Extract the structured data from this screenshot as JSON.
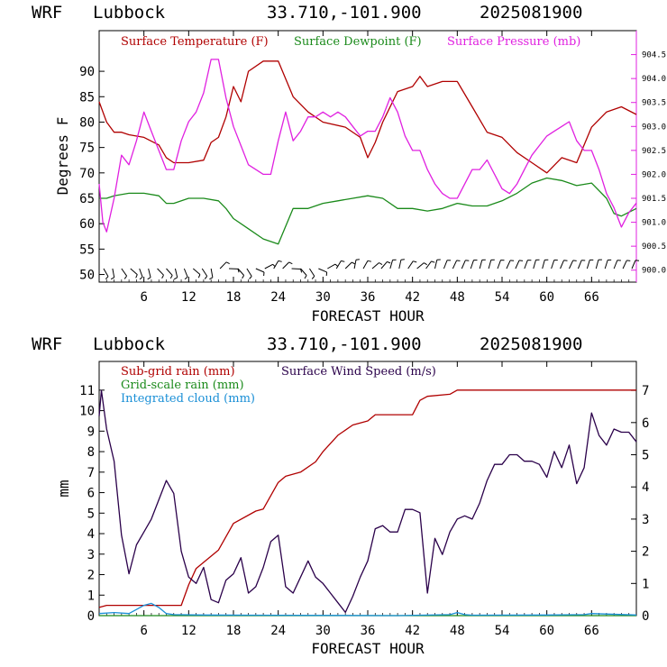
{
  "chart_data": [
    {
      "type": "line",
      "header": {
        "model": "WRF",
        "station": "Lubbock",
        "coords": "33.710,-101.900",
        "date": "2025081900"
      },
      "xlabel": "FORECAST HOUR",
      "ylabel": "Degrees F",
      "xlim": [
        0,
        72
      ],
      "xticks": [
        "6",
        "12",
        "18",
        "24",
        "30",
        "36",
        "42",
        "48",
        "54",
        "60",
        "66"
      ],
      "ylim": [
        48.5,
        98
      ],
      "yticks": [
        "50",
        "55",
        "60",
        "65",
        "70",
        "75",
        "80",
        "85",
        "90"
      ],
      "y2lim": [
        899.75,
        905.0
      ],
      "y2ticks": [
        "900.0",
        "900.5",
        "901.0",
        "901.5",
        "902.0",
        "902.5",
        "903.0",
        "903.5",
        "904.0",
        "904.5"
      ],
      "colors": {
        "temp": "#b00000",
        "dew": "#1a8a1a",
        "pres": "#e020e0"
      },
      "series": [
        {
          "name": "Surface Temperature (F)",
          "axis": "left",
          "x": [
            0,
            1,
            2,
            3,
            4,
            6,
            8,
            9,
            10,
            12,
            14,
            15,
            16,
            17,
            18,
            19,
            20,
            22,
            24,
            26,
            28,
            30,
            33,
            35,
            36,
            37,
            38,
            40,
            42,
            43,
            44,
            46,
            48,
            50,
            52,
            54,
            56,
            58,
            60,
            62,
            64,
            66,
            68,
            70,
            72
          ],
          "y": [
            84,
            80,
            78,
            78,
            77.5,
            77,
            75.5,
            73,
            72,
            72,
            72.5,
            76,
            77,
            81,
            87,
            84,
            90,
            92,
            92,
            85,
            82,
            80,
            79,
            77,
            73,
            76,
            80,
            86,
            87,
            89,
            87,
            88,
            88,
            83,
            78,
            77,
            74,
            72,
            70,
            73,
            72,
            79,
            82,
            83,
            81.5
          ]
        },
        {
          "name": "Surface Dewpoint (F)",
          "axis": "left",
          "x": [
            0,
            1,
            2,
            4,
            6,
            8,
            9,
            10,
            12,
            14,
            16,
            17,
            18,
            20,
            22,
            24,
            26,
            28,
            30,
            32,
            34,
            36,
            38,
            40,
            42,
            44,
            46,
            48,
            50,
            52,
            54,
            56,
            58,
            60,
            62,
            64,
            66,
            68,
            69,
            70,
            72
          ],
          "y": [
            65,
            65,
            65.5,
            66,
            66,
            65.5,
            64,
            64,
            65,
            65,
            64.5,
            63,
            61,
            59,
            57,
            56,
            63,
            63,
            64,
            64.5,
            65,
            65.5,
            65,
            63,
            63,
            62.5,
            63,
            64,
            63.5,
            63.5,
            64.5,
            66,
            68,
            69,
            68.5,
            67.5,
            68,
            65,
            62,
            61.5,
            63
          ]
        },
        {
          "name": "Surface Pressure (mb)",
          "axis": "right",
          "x": [
            0,
            0.5,
            1,
            2,
            3,
            4,
            5,
            6,
            7,
            8,
            9,
            10,
            11,
            12,
            13,
            14,
            15,
            16,
            17,
            18,
            19,
            20,
            21,
            22,
            23,
            24,
            25,
            26,
            27,
            28,
            29,
            30,
            31,
            32,
            33,
            34,
            35,
            36,
            37,
            38,
            39,
            40,
            41,
            42,
            43,
            44,
            45,
            46,
            47,
            48,
            49,
            50,
            51,
            52,
            53,
            54,
            55,
            56,
            57,
            58,
            59,
            60,
            61,
            62,
            63,
            64,
            65,
            66,
            67,
            68,
            69,
            70,
            71,
            72
          ],
          "y": [
            901.8,
            901.0,
            900.8,
            901.5,
            902.4,
            902.2,
            902.7,
            903.3,
            902.9,
            902.5,
            902.1,
            902.1,
            902.7,
            903.1,
            903.3,
            903.7,
            904.4,
            904.4,
            903.6,
            903.0,
            902.6,
            902.2,
            902.1,
            902.0,
            902.0,
            902.7,
            903.3,
            902.7,
            902.9,
            903.2,
            903.2,
            903.3,
            903.2,
            903.3,
            903.2,
            903.0,
            902.8,
            902.9,
            902.9,
            903.2,
            903.6,
            903.3,
            902.8,
            902.5,
            902.5,
            902.1,
            901.8,
            901.6,
            901.5,
            901.5,
            901.8,
            902.1,
            902.1,
            902.3,
            902.0,
            901.7,
            901.6,
            901.8,
            902.1,
            902.4,
            902.6,
            902.8,
            902.9,
            903.0,
            903.1,
            902.7,
            902.5,
            902.5,
            902.1,
            901.6,
            901.3,
            900.9,
            901.2,
            901.4
          ]
        }
      ],
      "wind_barbs": {
        "count": 60
      }
    },
    {
      "type": "line",
      "header": {
        "model": "WRF",
        "station": "Lubbock",
        "coords": "33.710,-101.900",
        "date": "2025081900"
      },
      "xlabel": "FORECAST HOUR",
      "ylabel": "mm",
      "xlim": [
        0,
        72
      ],
      "xticks": [
        "6",
        "12",
        "18",
        "24",
        "30",
        "36",
        "42",
        "48",
        "54",
        "60",
        "66"
      ],
      "ylim": [
        0,
        12.4
      ],
      "yticks": [
        "0",
        "1",
        "2",
        "3",
        "4",
        "5",
        "6",
        "7",
        "8",
        "9",
        "10",
        "11"
      ],
      "y2lim": [
        0,
        7.9
      ],
      "y2ticks": [
        "0",
        "1",
        "2",
        "3",
        "4",
        "5",
        "6",
        "7"
      ],
      "colors": {
        "subgrid": "#b00000",
        "gridscale": "#1a8a1a",
        "cloud": "#1a8fd6",
        "wind": "#2a004a"
      },
      "series": [
        {
          "name": "Sub-grid rain (mm)",
          "axis": "left",
          "x": [
            0,
            1,
            11,
            12,
            13,
            14,
            16,
            18,
            21,
            22,
            24,
            25,
            27,
            29,
            30,
            32,
            34,
            36,
            37,
            42,
            43,
            44,
            47,
            48,
            66,
            72
          ],
          "y": [
            0.4,
            0.5,
            0.5,
            1.5,
            2.3,
            2.6,
            3.2,
            4.5,
            5.1,
            5.2,
            6.5,
            6.8,
            7,
            7.5,
            8,
            8.8,
            9.3,
            9.5,
            9.8,
            9.8,
            10.5,
            10.7,
            10.8,
            11,
            11,
            11
          ]
        },
        {
          "name": "Grid-scale rain (mm)",
          "axis": "left",
          "x": [
            0,
            72
          ],
          "y": [
            0,
            0
          ]
        },
        {
          "name": "Integrated cloud (mm)",
          "axis": "left",
          "x": [
            0,
            2,
            4,
            5,
            6,
            7,
            8,
            9,
            10,
            14,
            20,
            40,
            47,
            48,
            49,
            50,
            60,
            65,
            66,
            72
          ],
          "y": [
            0.1,
            0.15,
            0.1,
            0.3,
            0.5,
            0.6,
            0.4,
            0.1,
            0.05,
            0.03,
            0.02,
            0,
            0.05,
            0.15,
            0.05,
            0.02,
            0.03,
            0.05,
            0.1,
            0.03
          ]
        },
        {
          "name": "Surface Wind Speed (m/s)",
          "axis": "right",
          "x": [
            0,
            0.3,
            1,
            2,
            3,
            4,
            5,
            6,
            7,
            8,
            9,
            10,
            11,
            12,
            13,
            14,
            15,
            16,
            17,
            18,
            19,
            20,
            21,
            22,
            23,
            24,
            25,
            26,
            27,
            28,
            29,
            30,
            31,
            32,
            33,
            34,
            35,
            36,
            37,
            38,
            39,
            40,
            41,
            42,
            43,
            44,
            45,
            46,
            47,
            48,
            49,
            50,
            51,
            52,
            53,
            54,
            55,
            56,
            57,
            58,
            59,
            60,
            61,
            62,
            63,
            64,
            65,
            66,
            67,
            68,
            69,
            70,
            71,
            72
          ],
          "y": [
            6.2,
            7,
            5.8,
            4.8,
            2.5,
            1.3,
            2.2,
            2.6,
            3,
            3.6,
            4.2,
            3.8,
            2.0,
            1.2,
            1.0,
            1.5,
            0.5,
            0.4,
            1.1,
            1.3,
            1.8,
            0.7,
            0.9,
            1.5,
            2.3,
            2.5,
            0.9,
            0.7,
            1.2,
            1.7,
            1.2,
            1.0,
            0.7,
            0.4,
            0.1,
            0.6,
            1.2,
            1.7,
            2.7,
            2.8,
            2.6,
            2.6,
            3.3,
            3.3,
            3.2,
            0.7,
            2.4,
            1.9,
            2.6,
            3.0,
            3.1,
            3.0,
            3.5,
            4.2,
            4.7,
            4.7,
            5.0,
            5.0,
            4.8,
            4.8,
            4.7,
            4.3,
            5.1,
            4.6,
            5.3,
            4.1,
            4.6,
            6.3,
            5.6,
            5.3,
            5.8,
            5.7,
            5.7,
            5.4
          ]
        }
      ]
    }
  ]
}
